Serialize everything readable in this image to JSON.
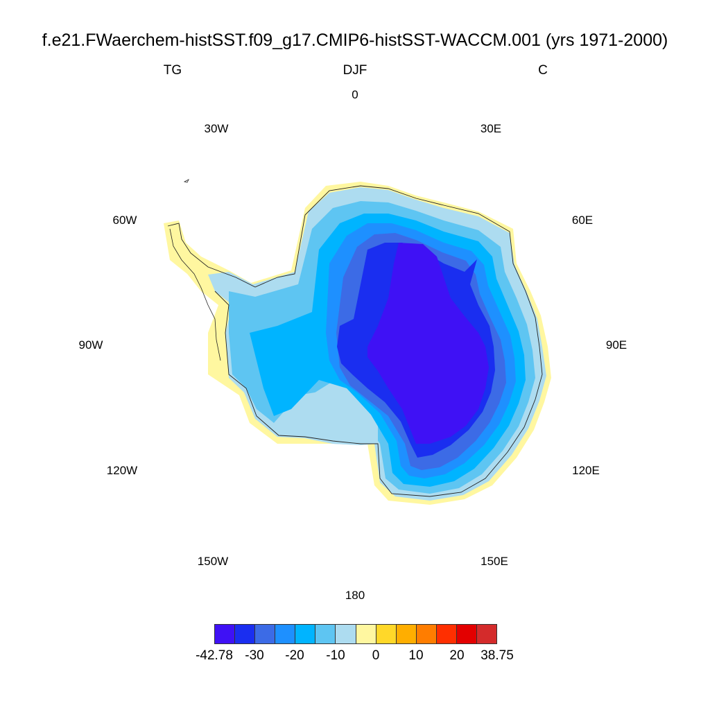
{
  "title": "f.e21.FWaerchem-histSST.f09_g17.CMIP6-histSST-WACCM.001 (yrs 1971-2000)",
  "subtitle": {
    "left": "TG",
    "center": "DJF",
    "right": "C"
  },
  "longitude_labels": [
    "0",
    "30E",
    "60E",
    "90E",
    "120E",
    "150E",
    "180",
    "150W",
    "120W",
    "90W",
    "60W",
    "30W"
  ],
  "colorbar": {
    "colors": [
      "#3f11f5",
      "#1a2ef0",
      "#3c6be6",
      "#1e90ff",
      "#00b4ff",
      "#5ec5f2",
      "#addcf0",
      "#fff7a0",
      "#ffd829",
      "#ffae00",
      "#ff7d00",
      "#ff2f00",
      "#e30000",
      "#d42b2b"
    ],
    "labels": [
      "-42.78",
      "-30",
      "-20",
      "-10",
      "0",
      "10",
      "20",
      "38.75"
    ]
  }
}
